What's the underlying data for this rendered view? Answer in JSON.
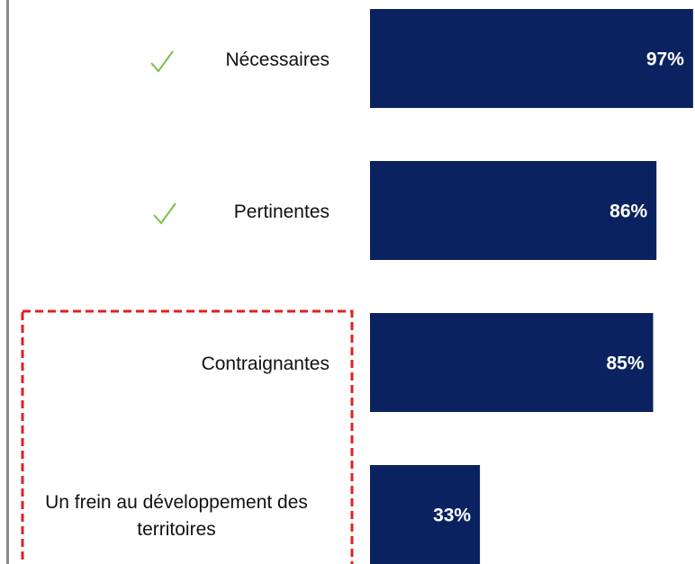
{
  "chart_data": {
    "type": "bar",
    "orientation": "horizontal",
    "categories": [
      "Nécessaires",
      "Pertinentes",
      "Contraignantes",
      "Un frein au développement des territoires"
    ],
    "values": [
      97,
      86,
      85,
      33
    ],
    "value_labels": [
      "97%",
      "86%",
      "85%",
      "33%"
    ],
    "color": "#0b2260",
    "xlim": [
      0,
      100
    ]
  }
}
